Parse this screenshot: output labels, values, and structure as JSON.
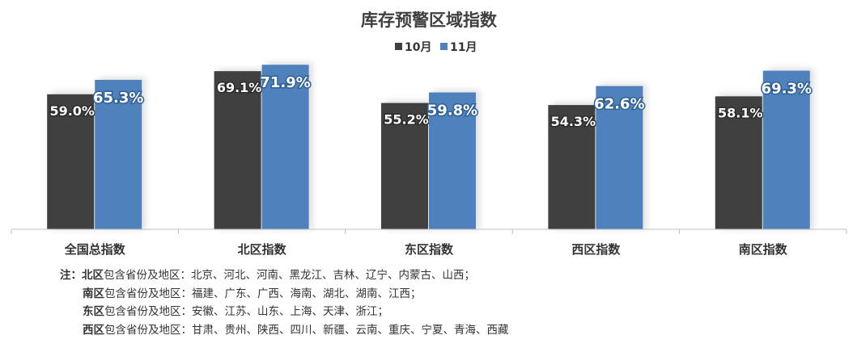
{
  "chart_data": {
    "type": "bar",
    "title": "库存预警区域指数",
    "categories": [
      "全国总指数",
      "北区指数",
      "东区指数",
      "西区指数",
      "南区指数"
    ],
    "series": [
      {
        "name": "10月",
        "values": [
          59.0,
          69.1,
          55.2,
          54.3,
          58.1
        ],
        "labels": [
          "59.0%",
          "69.1%",
          "55.2%",
          "54.3%",
          "58.1%"
        ],
        "color": "#404040"
      },
      {
        "name": "11月",
        "values": [
          65.3,
          71.9,
          59.8,
          62.6,
          69.3
        ],
        "labels": [
          "65.3%",
          "71.9%",
          "59.8%",
          "62.6%",
          "69.3%"
        ],
        "color": "#4f81bd"
      }
    ],
    "ylim": [
      0,
      100
    ],
    "grid": false,
    "legend": "top-center"
  },
  "notes": {
    "prefix": "注：",
    "lines": [
      {
        "region": "北区",
        "text": "包含省份及地区：北京、河北、河南、黑龙江、吉林、辽宁、内蒙古、山西；"
      },
      {
        "region": "南区",
        "text": "包含省份及地区：福建、广东、广西、海南、湖北、湖南、江西；"
      },
      {
        "region": "东区",
        "text": "包含省份及地区：安徽、江苏、山东、上海、天津、浙江；"
      },
      {
        "region": "西区",
        "text": "包含省份及地区：甘肃、贵州、陕西、四川、新疆、云南、重庆、宁夏、青海、西藏"
      }
    ]
  }
}
